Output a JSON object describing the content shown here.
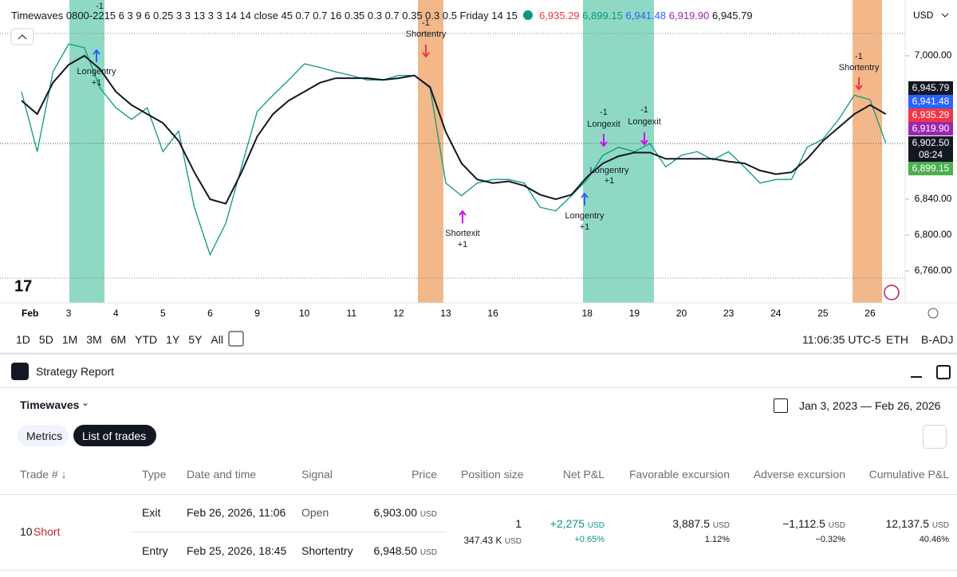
{
  "legend": {
    "study": "Timewaves 0800-2215 6 3 9 6 0.25 3 3 13 3 3 14 14 close 45 0.7 0.7 16 0.35 0.3 0.7 0.35 0.3 0.5 Friday 14 15",
    "values": [
      "6,935.29",
      "6,899.15",
      "6,941.48",
      "6,919.90",
      "6,945.79"
    ],
    "currency": "USD"
  },
  "chart_data": {
    "type": "line",
    "categories": [
      "Feb",
      null,
      null,
      "3",
      null,
      null,
      "4",
      null,
      null,
      "5",
      null,
      null,
      "6",
      null,
      null,
      "9",
      null,
      null,
      "10",
      null,
      null,
      "11",
      null,
      null,
      "12",
      null,
      null,
      "13",
      null,
      null,
      "16",
      null,
      null,
      null,
      null,
      null,
      "18",
      null,
      null,
      "19",
      null,
      null,
      "20",
      null,
      null,
      "23",
      null,
      null,
      "24",
      null,
      null,
      "25",
      null,
      null,
      "26",
      null
    ],
    "series": [
      {
        "color": "#089981",
        "values": [
          6960,
          6893,
          6982,
          7013,
          7009,
          6964,
          6942,
          6929,
          6942,
          6893,
          6916,
          6831,
          6778,
          6813,
          6876,
          6938,
          6956,
          6973,
          6991,
          6987,
          6982,
          6978,
          6973,
          6973,
          6978,
          6978,
          6964,
          6858,
          6844,
          6858,
          6862,
          6862,
          6858,
          6831,
          6827,
          6844,
          6862,
          6889,
          6898,
          6893,
          6902,
          6876,
          6889,
          6893,
          6884,
          6893,
          6876,
          6858,
          6862,
          6862,
          6898,
          6907,
          6929,
          6956,
          6951,
          6902.5
        ]
      },
      {
        "color": "#131722",
        "values": [
          6950,
          6935,
          6970,
          6990,
          7000,
          6985,
          6960,
          6945,
          6935,
          6925,
          6905,
          6870,
          6840,
          6835,
          6870,
          6910,
          6935,
          6950,
          6960,
          6970,
          6975,
          6975,
          6975,
          6973,
          6975,
          6978,
          6965,
          6915,
          6880,
          6862,
          6858,
          6860,
          6855,
          6845,
          6840,
          6845,
          6865,
          6880,
          6888,
          6892,
          6892,
          6885,
          6885,
          6885,
          6885,
          6882,
          6880,
          6872,
          6868,
          6870,
          6885,
          6905,
          6920,
          6935,
          6945,
          6935
        ]
      }
    ],
    "ylim": [
      6724.4,
      7062.2
    ],
    "yticks": [
      {
        "value": 7000,
        "label": "7,000.00"
      },
      {
        "value": 6840,
        "label": "6,840.00"
      },
      {
        "value": 6800,
        "label": "6,800.00"
      },
      {
        "value": 6760,
        "label": "6,760.00"
      }
    ]
  },
  "price_labels": [
    "6,945.79",
    "6,941.48",
    "6,935.29",
    "6,919.90",
    "6,902.50",
    "08:24",
    "6,899.15"
  ],
  "annotations": [
    "-1",
    "Longentry",
    "+1",
    "-1",
    "Shortentry",
    "Shortexit",
    "+1",
    "Longentry",
    "+1",
    "-1",
    "Longexit",
    "Longentry",
    "+1",
    "-1",
    "Longexit",
    "-1",
    "Shortentry"
  ],
  "toolbar": {
    "ranges": [
      "1D",
      "5D",
      "1M",
      "3M",
      "6M",
      "YTD",
      "1Y",
      "5Y",
      "All"
    ],
    "time": "11:06:35 UTC-5",
    "session": "ETH",
    "adjust": "B-ADJ"
  },
  "report": {
    "title": "Strategy Report",
    "strategy": "Timewaves",
    "date_range": "Jan 3, 2023 — Feb 26, 2026",
    "tabs": [
      "Metrics",
      "List of trades"
    ],
    "columns": [
      "Trade # ↓",
      "Type",
      "Date and time",
      "Signal",
      "Price",
      "Position size",
      "Net P&L",
      "Favorable excursion",
      "Adverse excursion",
      "Cumulative P&L"
    ],
    "currency": "USD",
    "trade": {
      "number": "10",
      "side": "Short",
      "exit": {
        "type": "Exit",
        "date": "Feb 26, 2026, 11:06",
        "signal": "Open",
        "price": "6,903.00"
      },
      "entry": {
        "type": "Entry",
        "date": "Feb 25, 2026, 18:45",
        "signal": "Shortentry",
        "price": "6,948.50"
      },
      "position_size": "1",
      "position_value": "347.43 K",
      "net_pnl": "+2,275",
      "net_pnl_pct": "+0.65%",
      "favorable": "3,887.5",
      "favorable_pct": "1.12%",
      "adverse": "−1,112.5",
      "adverse_pct": "−0.32%",
      "cumulative": "12,137.5",
      "cumulative_pct": "40.46%"
    }
  }
}
